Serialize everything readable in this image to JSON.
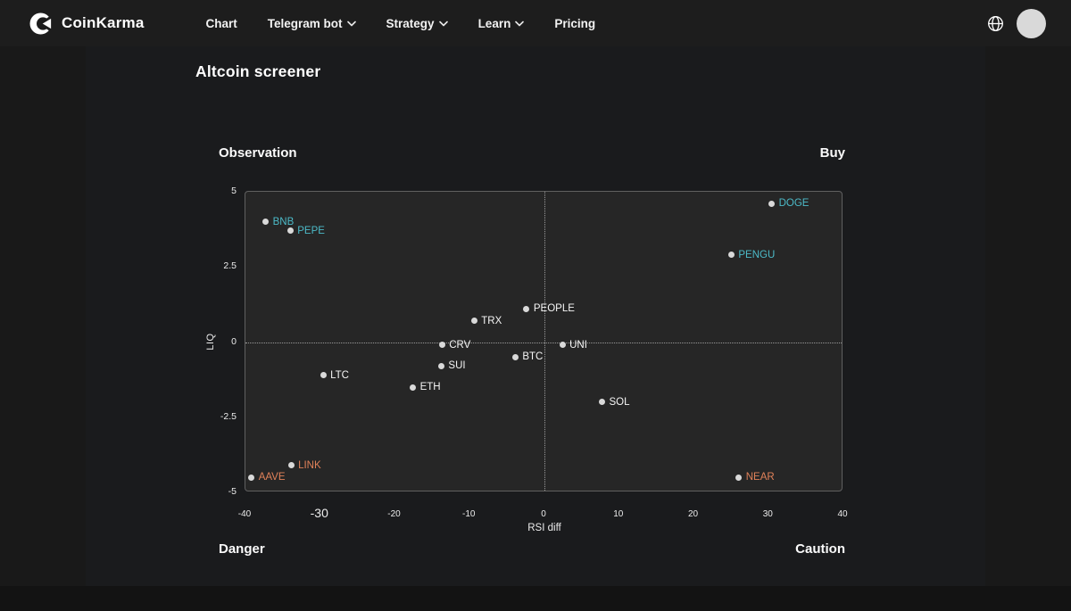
{
  "nav": {
    "brand": "CoinKarma",
    "logo_icon": "coinkarma-logo-icon",
    "items": [
      {
        "label": "Chart",
        "has_dropdown": false
      },
      {
        "label": "Telegram bot",
        "has_dropdown": true
      },
      {
        "label": "Strategy",
        "has_dropdown": true
      },
      {
        "label": "Learn",
        "has_dropdown": true
      },
      {
        "label": "Pricing",
        "has_dropdown": false
      }
    ],
    "right": {
      "globe_icon": "globe-icon",
      "avatar": "user-avatar"
    }
  },
  "page": {
    "title": "Altcoin screener"
  },
  "quadrants": {
    "top_left": "Observation",
    "top_right": "Buy",
    "bottom_left": "Danger",
    "bottom_right": "Caution"
  },
  "chart_data": {
    "type": "scatter",
    "xlabel": "RSI diff",
    "ylabel": "LIQ",
    "xlim": [
      -40,
      40
    ],
    "ylim": [
      -5,
      5
    ],
    "x_ticks": [
      "-40",
      "-30",
      "-20",
      "-10",
      "0",
      "10",
      "20",
      "30",
      "40"
    ],
    "emphasized_x_tick": "-30",
    "y_ticks": [
      "5",
      "2.5",
      "0",
      "-2.5",
      "-5"
    ],
    "crosshair": {
      "x": 0,
      "y": 0,
      "style": "dotted"
    },
    "colors": {
      "teal": "#4cbac8",
      "white": "#f5f5f5",
      "orange": "#e08159",
      "dot": "#d9d9d9",
      "plot_bg": "#262626",
      "plot_border": "#606060"
    },
    "points": [
      {
        "label": "BNB",
        "x": -37.3,
        "y": 4.0,
        "color": "teal"
      },
      {
        "label": "PEPE",
        "x": -34.0,
        "y": 3.7,
        "color": "teal"
      },
      {
        "label": "DOGE",
        "x": 30.4,
        "y": 4.6,
        "color": "teal"
      },
      {
        "label": "PENGU",
        "x": 25.0,
        "y": 2.9,
        "color": "teal"
      },
      {
        "label": "PEOPLE",
        "x": -2.4,
        "y": 1.1,
        "color": "white"
      },
      {
        "label": "TRX",
        "x": -9.4,
        "y": 0.7,
        "color": "white"
      },
      {
        "label": "CRV",
        "x": -13.7,
        "y": -0.1,
        "color": "white"
      },
      {
        "label": "UNI",
        "x": 2.4,
        "y": -0.1,
        "color": "white"
      },
      {
        "label": "BTC",
        "x": -3.9,
        "y": -0.5,
        "color": "white"
      },
      {
        "label": "SUI",
        "x": -13.8,
        "y": -0.8,
        "color": "white"
      },
      {
        "label": "ETH",
        "x": -17.6,
        "y": -1.5,
        "color": "white"
      },
      {
        "label": "LTC",
        "x": -29.6,
        "y": -1.1,
        "color": "white"
      },
      {
        "label": "SOL",
        "x": 7.7,
        "y": -2.0,
        "color": "white"
      },
      {
        "label": "LINK",
        "x": -33.9,
        "y": -4.1,
        "color": "orange"
      },
      {
        "label": "AAVE",
        "x": -39.2,
        "y": -4.5,
        "color": "orange"
      },
      {
        "label": "NEAR",
        "x": 26.0,
        "y": -4.5,
        "color": "orange"
      }
    ]
  }
}
